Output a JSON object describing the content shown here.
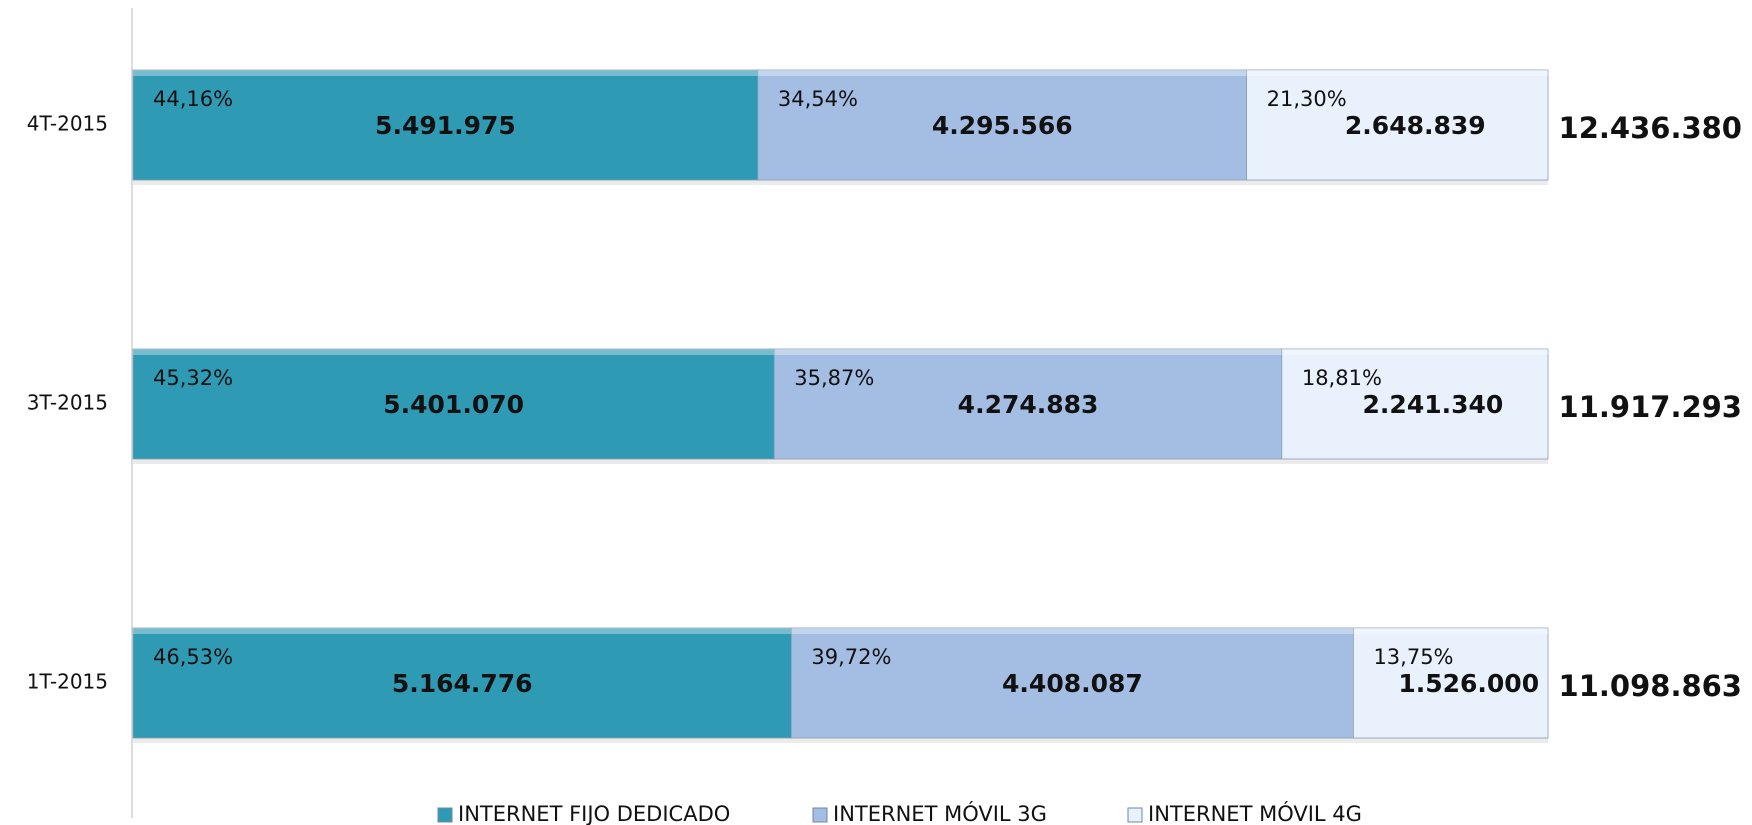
{
  "chart_data": {
    "type": "stacked_bar_100",
    "categories": [
      "4T-2015",
      "3T-2015",
      "1T-2015"
    ],
    "series": [
      {
        "name": "INTERNET FIJO DEDICADO",
        "color": "#2f9ab4",
        "values": [
          5491975,
          5401070,
          5164776
        ],
        "value_labels": [
          "5.491.975",
          "5.401.070",
          "5.164.776"
        ],
        "percentages": [
          44.16,
          45.32,
          46.53
        ],
        "percentage_labels": [
          "44,16%",
          "45,32%",
          "46,53%"
        ]
      },
      {
        "name": "INTERNET MÓVIL 3G",
        "color": "#a3bde3",
        "values": [
          4295566,
          4274883,
          4408087
        ],
        "value_labels": [
          "4.295.566",
          "4.274.883",
          "4.408.087"
        ],
        "percentages": [
          34.54,
          35.87,
          39.72
        ],
        "percentage_labels": [
          "34,54%",
          "35,87%",
          "39,72%"
        ]
      },
      {
        "name": "INTERNET MÓVIL 4G",
        "color": "#e8f1fc",
        "values": [
          2648839,
          2241340,
          1526000
        ],
        "value_labels": [
          "2.648.839",
          "2.241.340",
          "1.526.000"
        ],
        "percentages": [
          21.3,
          18.81,
          13.75
        ],
        "percentage_labels": [
          "21,30%",
          "18,81%",
          "13,75%"
        ]
      }
    ],
    "totals": [
      12436380,
      11917293,
      11098863
    ],
    "total_labels": [
      "12.436.380",
      "11.917.293",
      "11.098.863"
    ],
    "legend": "bottom"
  }
}
